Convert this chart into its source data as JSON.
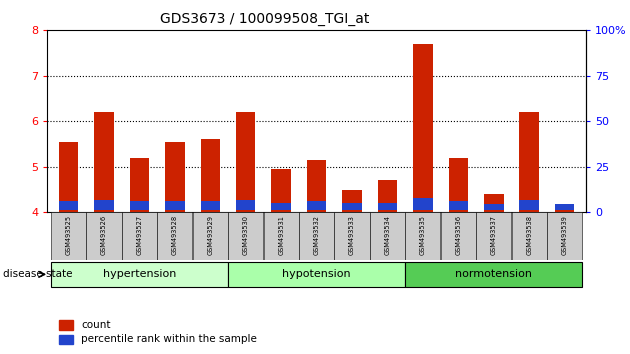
{
  "title": "GDS3673 / 100099508_TGI_at",
  "samples": [
    "GSM493525",
    "GSM493526",
    "GSM493527",
    "GSM493528",
    "GSM493529",
    "GSM493530",
    "GSM493531",
    "GSM493532",
    "GSM493533",
    "GSM493534",
    "GSM493535",
    "GSM493536",
    "GSM493537",
    "GSM493538",
    "GSM493539"
  ],
  "red_values": [
    5.55,
    6.2,
    5.2,
    5.55,
    5.6,
    6.2,
    4.95,
    5.15,
    4.5,
    4.72,
    7.7,
    5.2,
    4.4,
    6.2,
    4.15
  ],
  "blue_values": [
    0.18,
    0.22,
    0.18,
    0.18,
    0.18,
    0.22,
    0.15,
    0.18,
    0.15,
    0.15,
    0.25,
    0.18,
    0.12,
    0.22,
    0.12
  ],
  "y_min": 4.0,
  "y_max": 8.0,
  "y_ticks": [
    4,
    5,
    6,
    7,
    8
  ],
  "right_y_ticks": [
    0,
    25,
    50,
    75,
    100
  ],
  "right_y_labels": [
    "0",
    "25",
    "50",
    "75",
    "100%"
  ],
  "groups": [
    {
      "label": "hypertension",
      "start": 0,
      "end": 5,
      "color": "#ccffcc"
    },
    {
      "label": "hypotension",
      "start": 5,
      "end": 10,
      "color": "#aaffaa"
    },
    {
      "label": "normotension",
      "start": 10,
      "end": 15,
      "color": "#55cc55"
    }
  ],
  "bar_width": 0.55,
  "red_color": "#cc2200",
  "blue_color": "#2244cc",
  "disease_state_label": "disease state",
  "legend_count": "count",
  "legend_percentile": "percentile rank within the sample",
  "tick_label_bg": "#cccccc",
  "dotted_grid_levels": [
    5,
    6,
    7
  ]
}
